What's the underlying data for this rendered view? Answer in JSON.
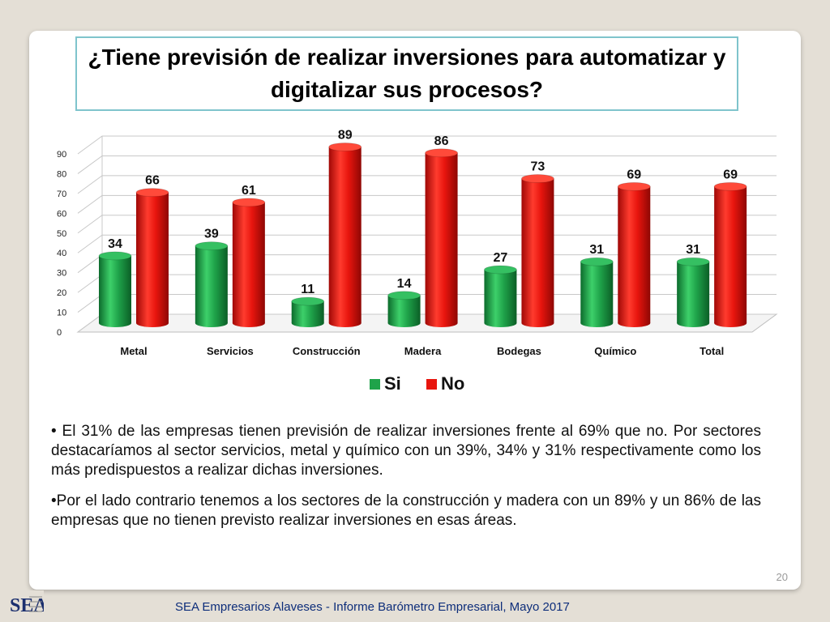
{
  "title": "¿Tiene previsión de realizar  inversiones para automatizar y digitalizar sus procesos?",
  "chart_data": {
    "type": "bar",
    "categories": [
      "Metal",
      "Servicios",
      "Construcción",
      "Madera",
      "Bodegas",
      "Químico",
      "Total"
    ],
    "series": [
      {
        "name": "Si",
        "values": [
          34,
          39,
          11,
          14,
          27,
          31,
          31
        ],
        "color": "#1fa34a"
      },
      {
        "name": "No",
        "values": [
          66,
          61,
          89,
          86,
          73,
          69,
          69
        ],
        "color": "#e8150e"
      }
    ],
    "yticks": [
      0,
      10,
      20,
      30,
      40,
      50,
      60,
      70,
      80,
      90
    ],
    "ylim": [
      0,
      90
    ],
    "grid": true,
    "legend": "bottom",
    "style": "3d-cylinder"
  },
  "bullets": [
    "• El 31% de las empresas tienen previsión de realizar inversiones frente al 69% que no. Por sectores destacaríamos al sector servicios, metal y químico con un 39%, 34% y 31% respectivamente como los más predispuestos a realizar dichas inversiones.",
    "•Por el lado contrario tenemos a los sectores de la construcción y madera con un 89% y un 86% de las empresas que no tienen previsto realizar inversiones en esas áreas."
  ],
  "page_number": "20",
  "footer": "SEA Empresarios Alaveses  -  Informe Barómetro Empresarial, Mayo 2017",
  "logo_text": "SEA"
}
